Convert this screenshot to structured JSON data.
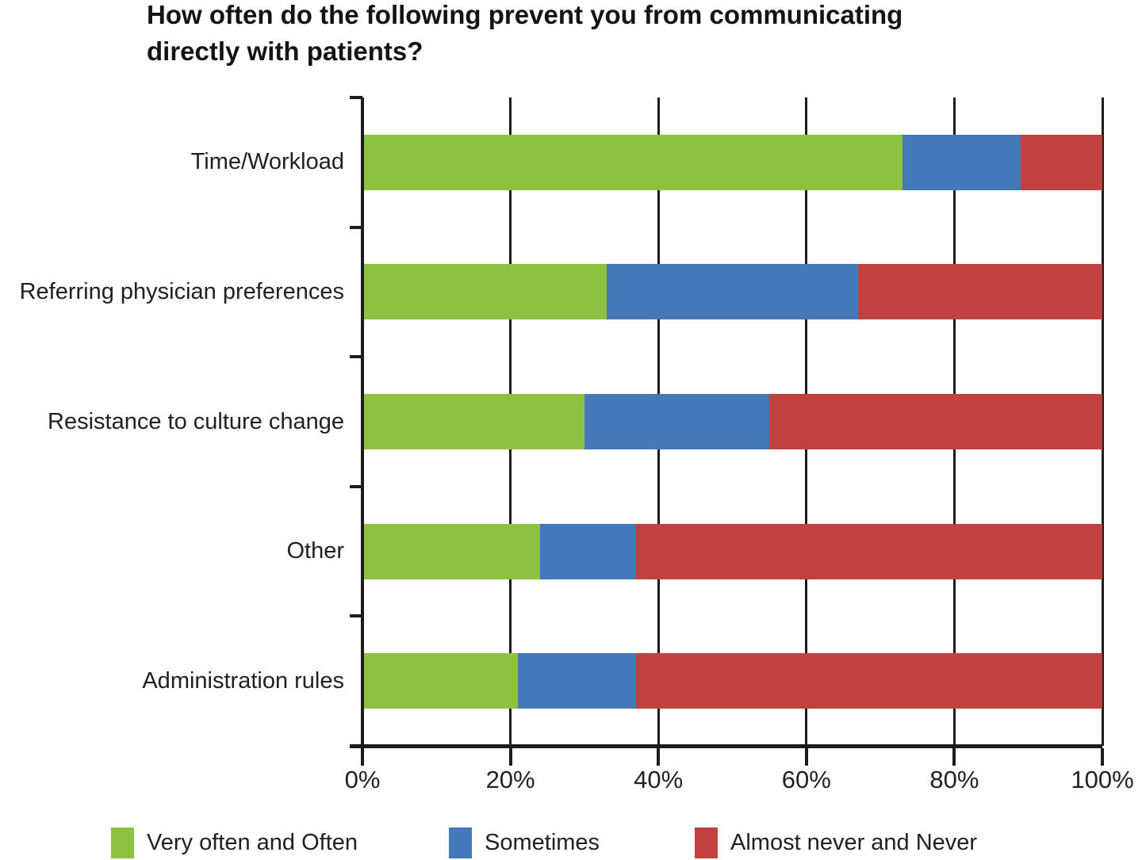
{
  "title_lines": {
    "line1": "How often do the following prevent you from communicating",
    "line2": "directly with patients?"
  },
  "colors": {
    "green": "#8CC23F",
    "blue": "#4478B7",
    "red": "#C0413D",
    "axis": "#1c1c1c",
    "text": "#231f20"
  },
  "chart_data": {
    "type": "bar",
    "orientation": "horizontal",
    "stacked": true,
    "title": "How often do the following prevent you from communicating directly with patients?",
    "categories": [
      "Time/Workload",
      "Referring physician preferences",
      "Resistance to culture change",
      "Other",
      "Administration rules"
    ],
    "series": [
      {
        "name": "Very often and Often",
        "color": "#8CC23F",
        "values": [
          73,
          33,
          30,
          24,
          21
        ]
      },
      {
        "name": "Sometimes",
        "color": "#4478B7",
        "values": [
          16,
          34,
          25,
          13,
          16
        ]
      },
      {
        "name": "Almost never and Never",
        "color": "#C0413D",
        "values": [
          11,
          33,
          45,
          63,
          63
        ]
      }
    ],
    "xlabel": "",
    "ylabel": "",
    "xlim": [
      0,
      100
    ],
    "x_ticks": [
      "0%",
      "20%",
      "40%",
      "60%",
      "80%",
      "100%"
    ],
    "grid": true,
    "legend_position": "bottom"
  }
}
